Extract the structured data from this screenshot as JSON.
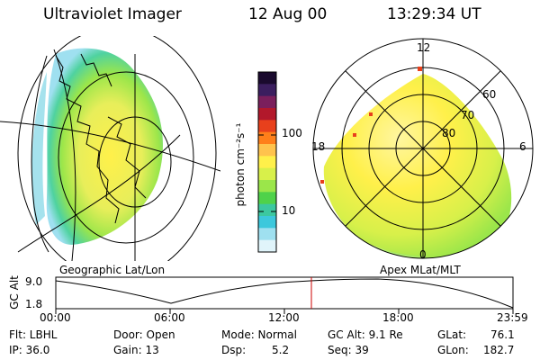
{
  "header": {
    "instrument": "Ultraviolet Imager",
    "date": "12 Aug 00",
    "time": "13:29:34 UT"
  },
  "colorbar": {
    "unit_label": "photon cm⁻²s⁻¹",
    "ticks": [
      "100",
      "10"
    ],
    "colors": [
      "#1a0a2e",
      "#3b1e5f",
      "#7a1f5c",
      "#b2182b",
      "#e8401c",
      "#ff7f1a",
      "#ffc34d",
      "#fff04a",
      "#d8f04a",
      "#9be64a",
      "#4fd24a",
      "#3cc8a0",
      "#3cc8dc",
      "#9fe0f0",
      "#e0f4fa"
    ]
  },
  "left_map": {
    "caption": "Geographic Lat/Lon"
  },
  "right_map": {
    "caption": "Apex MLat/MLT",
    "mlt_labels": {
      "top": "12",
      "left": "18",
      "right": "6",
      "bottom": "0"
    },
    "mlat_labels": [
      "60",
      "70",
      "80"
    ]
  },
  "altitude_plot": {
    "ylabel": "GC Alt",
    "yticks": [
      "9.0",
      "1.8"
    ],
    "xticks": [
      "00:00",
      "06:00",
      "12:00",
      "18:00",
      "23:59"
    ],
    "marker_time": "13:29:34"
  },
  "info": {
    "filter": "Flt: LBHL",
    "ip": "IP: 36.0",
    "door": "Door: Open",
    "gain": "Gain: 13",
    "mode": "Mode: Normal",
    "dsp_label": "Dsp:",
    "dsp_value": "5.2",
    "gc_alt": "GC Alt: 9.1 Re",
    "seq": "Seq: 39",
    "glat_label": "GLat:",
    "glat_value": "76.1",
    "glon_label": "GLon:",
    "glon_value": "182.7"
  }
}
